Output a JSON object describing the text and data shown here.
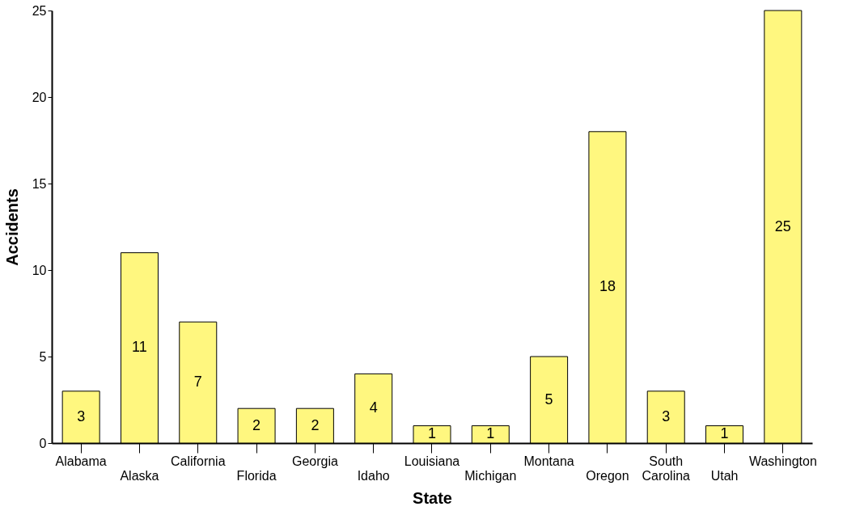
{
  "chart_data": {
    "type": "bar",
    "xlabel": "State",
    "ylabel": "Accidents",
    "categories": [
      "Alabama",
      "Alaska",
      "California",
      "Florida",
      "Georgia",
      "Idaho",
      "Louisiana",
      "Michigan",
      "Montana",
      "Oregon",
      "South Carolina",
      "Utah",
      "Washington"
    ],
    "values": [
      3,
      11,
      7,
      2,
      2,
      4,
      1,
      1,
      5,
      18,
      3,
      1,
      25
    ],
    "color": "#fff77f",
    "ylim": [
      0,
      25
    ],
    "yticks": [
      0,
      5,
      10,
      15,
      20,
      25
    ],
    "data_labels": true,
    "grid": false
  }
}
